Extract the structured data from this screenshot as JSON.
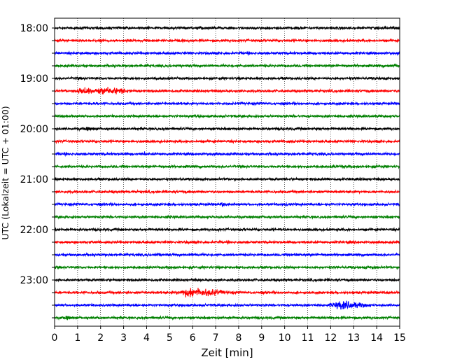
{
  "chart_data": {
    "type": "line",
    "subtype": "helicorder-seismogram",
    "xlabel": "Zeit  [min]",
    "ylabel": "UTC (Lokalzeit = UTC + 01:00)",
    "xlim": [
      0,
      15
    ],
    "x_ticks": [
      0,
      1,
      2,
      3,
      4,
      5,
      6,
      7,
      8,
      9,
      10,
      11,
      12,
      13,
      14,
      15
    ],
    "y_tick_labels": [
      "18:00",
      "19:00",
      "20:00",
      "21:00",
      "22:00",
      "23:00"
    ],
    "grid": "vertical-dotted",
    "line_colors": [
      "#000000",
      "#ff0000",
      "#0000ff",
      "#008000"
    ],
    "traces": [
      {
        "start": "18:00",
        "color": "#000000",
        "events": [
          {
            "t": 10.5,
            "amp": 1.4,
            "dur": 0.5
          }
        ]
      },
      {
        "start": "18:15",
        "color": "#ff0000",
        "events": []
      },
      {
        "start": "18:30",
        "color": "#0000ff",
        "events": [
          {
            "t": 1.2,
            "amp": 1.3,
            "dur": 0.5
          }
        ]
      },
      {
        "start": "18:45",
        "color": "#008000",
        "events": [
          {
            "t": 14.8,
            "amp": 1.6,
            "dur": 0.4
          }
        ]
      },
      {
        "start": "19:00",
        "color": "#000000",
        "events": [
          {
            "t": 4.5,
            "amp": 1.3,
            "dur": 0.4
          }
        ]
      },
      {
        "start": "19:15",
        "color": "#ff0000",
        "events": [
          {
            "t": 1.3,
            "amp": 3.5,
            "dur": 0.6
          },
          {
            "t": 2.1,
            "amp": 3.0,
            "dur": 0.9
          },
          {
            "t": 2.8,
            "amp": 2.4,
            "dur": 0.7
          }
        ]
      },
      {
        "start": "19:30",
        "color": "#0000ff",
        "events": []
      },
      {
        "start": "19:45",
        "color": "#008000",
        "events": [
          {
            "t": 6.3,
            "amp": 1.3,
            "dur": 0.6
          }
        ]
      },
      {
        "start": "20:00",
        "color": "#000000",
        "events": [
          {
            "t": 1.5,
            "amp": 1.5,
            "dur": 0.6
          },
          {
            "t": 11.5,
            "amp": 1.2,
            "dur": 0.4
          }
        ]
      },
      {
        "start": "20:15",
        "color": "#ff0000",
        "events": [
          {
            "t": 10.2,
            "amp": 1.4,
            "dur": 0.4
          }
        ]
      },
      {
        "start": "20:30",
        "color": "#0000ff",
        "events": [
          {
            "t": 3.9,
            "amp": 2.0,
            "dur": 0.1
          }
        ]
      },
      {
        "start": "20:45",
        "color": "#008000",
        "events": [
          {
            "t": 12.5,
            "amp": 1.4,
            "dur": 0.8
          },
          {
            "t": 14.1,
            "amp": 1.5,
            "dur": 0.5
          }
        ]
      },
      {
        "start": "21:00",
        "color": "#000000",
        "events": [
          {
            "t": 8.8,
            "amp": 1.2,
            "dur": 0.3
          }
        ]
      },
      {
        "start": "21:15",
        "color": "#ff0000",
        "events": [
          {
            "t": 4.9,
            "amp": 1.2,
            "dur": 0.3
          }
        ]
      },
      {
        "start": "21:30",
        "color": "#0000ff",
        "events": [
          {
            "t": 7.3,
            "amp": 2.2,
            "dur": 0.1
          },
          {
            "t": 10.0,
            "amp": 1.4,
            "dur": 0.3
          }
        ]
      },
      {
        "start": "21:45",
        "color": "#008000",
        "events": []
      },
      {
        "start": "22:00",
        "color": "#000000",
        "events": [
          {
            "t": 10.0,
            "amp": 1.3,
            "dur": 0.2
          }
        ]
      },
      {
        "start": "22:15",
        "color": "#ff0000",
        "events": [
          {
            "t": 6.0,
            "amp": 1.2,
            "dur": 0.5
          },
          {
            "t": 13.0,
            "amp": 1.3,
            "dur": 0.5
          }
        ]
      },
      {
        "start": "22:30",
        "color": "#0000ff",
        "events": [
          {
            "t": 4.5,
            "amp": 1.4,
            "dur": 0.4
          },
          {
            "t": 6.0,
            "amp": 1.4,
            "dur": 0.5
          },
          {
            "t": 10.4,
            "amp": 1.8,
            "dur": 0.2
          }
        ]
      },
      {
        "start": "22:45",
        "color": "#008000",
        "events": [
          {
            "t": 5.0,
            "amp": 1.3,
            "dur": 0.4
          },
          {
            "t": 13.8,
            "amp": 1.4,
            "dur": 0.4
          }
        ]
      },
      {
        "start": "23:00",
        "color": "#000000",
        "events": [
          {
            "t": 8.0,
            "amp": 1.2,
            "dur": 0.4
          }
        ]
      },
      {
        "start": "23:15",
        "color": "#ff0000",
        "events": [
          {
            "t": 6.0,
            "amp": 4.5,
            "dur": 1.0
          },
          {
            "t": 6.9,
            "amp": 2.6,
            "dur": 0.9
          }
        ]
      },
      {
        "start": "23:30",
        "color": "#0000ff",
        "events": [
          {
            "t": 12.5,
            "amp": 3.8,
            "dur": 0.8
          },
          {
            "t": 13.2,
            "amp": 2.4,
            "dur": 0.7
          }
        ]
      },
      {
        "start": "23:45",
        "color": "#008000",
        "events": [
          {
            "t": 0.6,
            "amp": 1.6,
            "dur": 0.4
          }
        ]
      }
    ]
  }
}
